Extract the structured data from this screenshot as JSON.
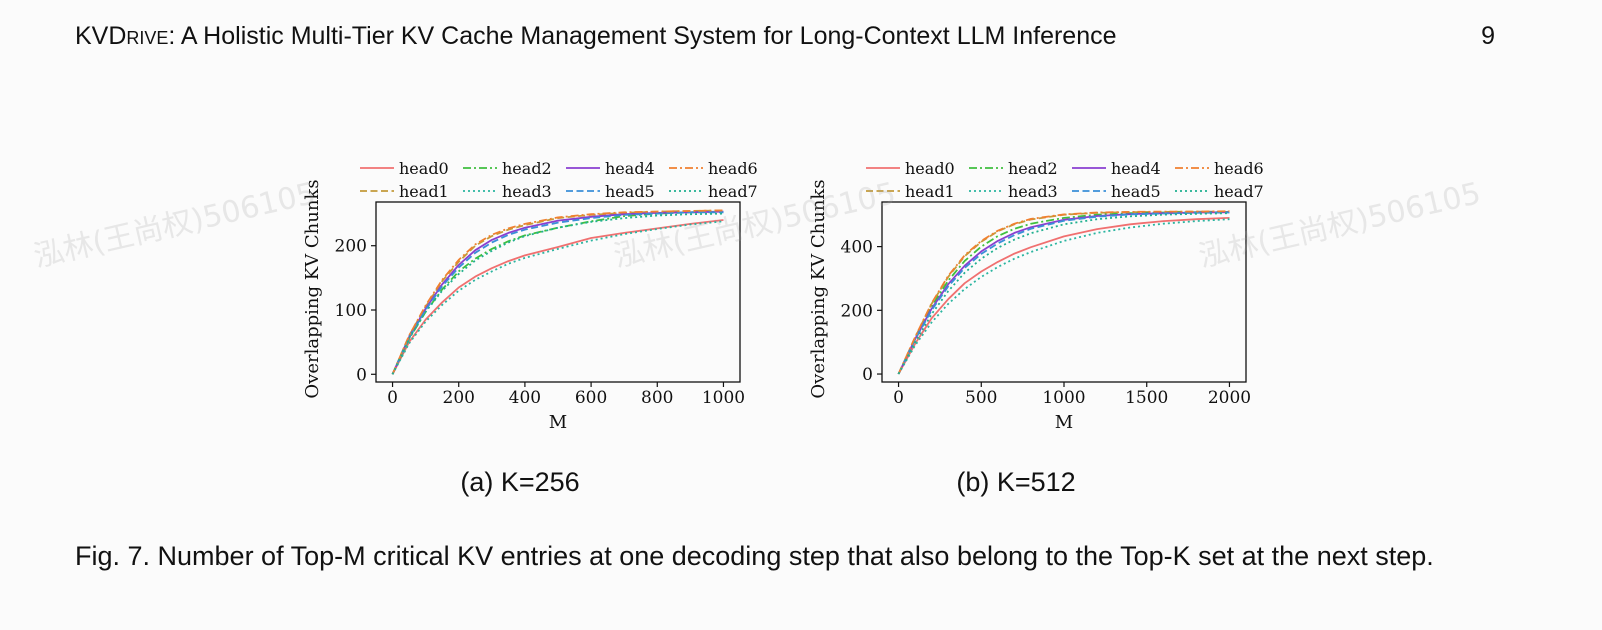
{
  "header": {
    "title_prefix": "KVD",
    "title_smallcaps": "rive",
    "title_rest": ": A Holistic Multi-Tier KV Cache Management System for Long-Context LLM Inference",
    "page_number": "9"
  },
  "watermarks": [
    "泓林(王尚权)506105",
    "泓林(王尚权)506105",
    "泓林(王尚权)506105"
  ],
  "figure": {
    "subcaptions": [
      "(a) K=256",
      "(b) K=512"
    ],
    "caption": "Fig. 7.  Number of Top-M critical KV entries at one decoding step that also belong to the Top-K set at the next step."
  },
  "chart_data": [
    {
      "type": "line",
      "title": "",
      "xlabel": "M",
      "ylabel": "Overlapping KV Chunks",
      "xlim": [
        -50,
        1050
      ],
      "ylim": [
        -12,
        268
      ],
      "xticks": [
        0,
        200,
        400,
        600,
        800,
        1000
      ],
      "yticks": [
        0,
        100,
        200
      ],
      "grid": false,
      "legend_position": "top",
      "x": [
        0,
        50,
        100,
        150,
        200,
        250,
        300,
        350,
        400,
        500,
        600,
        700,
        800,
        900,
        1000
      ],
      "series": [
        {
          "name": "head0",
          "color": "#f07070",
          "dash": "solid",
          "values": [
            0,
            50,
            85,
            112,
            135,
            152,
            165,
            176,
            185,
            198,
            212,
            220,
            227,
            234,
            240
          ]
        },
        {
          "name": "head1",
          "color": "#c39b3a",
          "dash": "dashed",
          "values": [
            0,
            60,
            105,
            145,
            175,
            200,
            215,
            225,
            232,
            243,
            248,
            251,
            253,
            254,
            255
          ]
        },
        {
          "name": "head2",
          "color": "#3fbf3f",
          "dash": "dashdot",
          "values": [
            0,
            55,
            97,
            132,
            160,
            180,
            195,
            207,
            216,
            228,
            238,
            246,
            250,
            252,
            253
          ]
        },
        {
          "name": "head3",
          "color": "#2bb5a0",
          "dash": "dotted",
          "values": [
            0,
            48,
            82,
            108,
            130,
            147,
            160,
            172,
            181,
            195,
            208,
            218,
            226,
            233,
            238
          ]
        },
        {
          "name": "head4",
          "color": "#8a3fd0",
          "dash": "solid",
          "values": [
            0,
            58,
            102,
            140,
            170,
            193,
            209,
            220,
            228,
            239,
            245,
            249,
            251,
            252,
            253
          ]
        },
        {
          "name": "head5",
          "color": "#3a8fd8",
          "dash": "dashed",
          "values": [
            0,
            57,
            100,
            137,
            166,
            189,
            205,
            217,
            225,
            236,
            243,
            248,
            250,
            252,
            252
          ]
        },
        {
          "name": "head6",
          "color": "#f08030",
          "dash": "dashdot",
          "values": [
            0,
            60,
            107,
            147,
            178,
            202,
            217,
            227,
            234,
            244,
            249,
            252,
            253,
            254,
            255
          ]
        },
        {
          "name": "head7",
          "color": "#20b090",
          "dash": "dotted",
          "values": [
            0,
            56,
            97,
            130,
            156,
            177,
            192,
            205,
            215,
            228,
            237,
            243,
            247,
            249,
            250
          ]
        }
      ]
    },
    {
      "type": "line",
      "title": "",
      "xlabel": "M",
      "ylabel": "Overlapping KV Chunks",
      "xlim": [
        -100,
        2100
      ],
      "ylim": [
        -25,
        540
      ],
      "xticks": [
        0,
        500,
        1000,
        1500,
        2000
      ],
      "yticks": [
        0,
        200,
        400
      ],
      "grid": false,
      "legend_position": "top",
      "x": [
        0,
        100,
        200,
        300,
        400,
        500,
        600,
        700,
        800,
        1000,
        1200,
        1400,
        1600,
        1800,
        2000
      ],
      "series": [
        {
          "name": "head0",
          "color": "#f07070",
          "dash": "solid",
          "values": [
            0,
            95,
            175,
            235,
            285,
            322,
            352,
            378,
            398,
            432,
            455,
            470,
            480,
            486,
            490
          ]
        },
        {
          "name": "head1",
          "color": "#c39b3a",
          "dash": "dashed",
          "values": [
            0,
            115,
            220,
            305,
            370,
            415,
            448,
            470,
            485,
            500,
            506,
            508,
            509,
            510,
            510
          ]
        },
        {
          "name": "head2",
          "color": "#3fbf3f",
          "dash": "dashdot",
          "values": [
            0,
            112,
            212,
            293,
            355,
            400,
            433,
            456,
            472,
            490,
            500,
            505,
            507,
            508,
            509
          ]
        },
        {
          "name": "head3",
          "color": "#2bb5a0",
          "dash": "dotted",
          "values": [
            0,
            90,
            162,
            220,
            267,
            305,
            336,
            362,
            383,
            418,
            443,
            460,
            472,
            480,
            486
          ]
        },
        {
          "name": "head4",
          "color": "#8a3fd0",
          "dash": "solid",
          "values": [
            0,
            110,
            205,
            282,
            340,
            385,
            418,
            443,
            461,
            484,
            496,
            502,
            505,
            507,
            508
          ]
        },
        {
          "name": "head5",
          "color": "#3a8fd8",
          "dash": "dashed",
          "values": [
            0,
            108,
            200,
            275,
            333,
            377,
            410,
            436,
            456,
            481,
            494,
            501,
            504,
            506,
            507
          ]
        },
        {
          "name": "head6",
          "color": "#f08030",
          "dash": "dashdot",
          "values": [
            0,
            116,
            222,
            308,
            373,
            418,
            450,
            472,
            487,
            501,
            507,
            509,
            510,
            510,
            511
          ]
        },
        {
          "name": "head7",
          "color": "#20b090",
          "dash": "dotted",
          "values": [
            0,
            100,
            188,
            260,
            318,
            362,
            396,
            422,
            442,
            470,
            486,
            495,
            500,
            503,
            505
          ]
        }
      ]
    }
  ]
}
